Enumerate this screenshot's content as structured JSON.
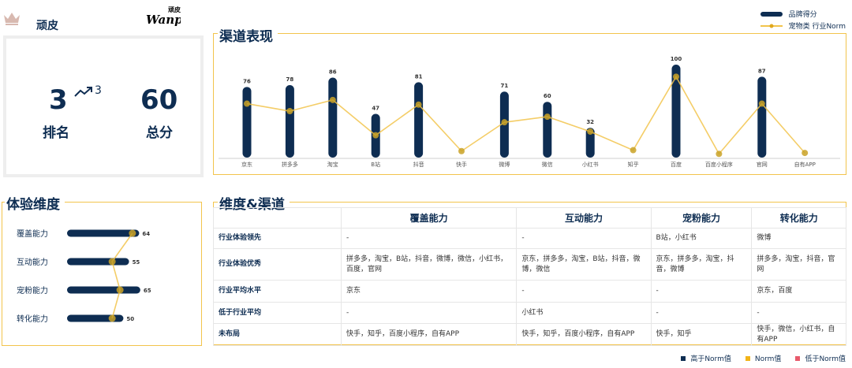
{
  "header": {
    "brand_name": "顽皮",
    "logo_icon": "wanpy-logo",
    "logo_text_top": "顽皮",
    "logo_text": "Wanpy"
  },
  "score": {
    "rank": "3",
    "rank_change": "3",
    "rank_label": "排名",
    "total": "60",
    "total_label": "总分"
  },
  "colors": {
    "navy": "#0e2d52",
    "gold": "#f2c44c",
    "norm_dot": "#c9a227",
    "red": "#e85a6b"
  },
  "channel_panel": {
    "title": "渠道表现",
    "legend": {
      "brand_score": "品牌得分",
      "norm": "宠物类 行业Norm"
    }
  },
  "experience_panel": {
    "title": "体验维度"
  },
  "matrix_panel": {
    "title": "维度&渠道",
    "columns": [
      "覆盖能力",
      "互动能力",
      "宠粉能力",
      "转化能力"
    ],
    "rows": [
      {
        "label": "行业体验领先",
        "cells": [
          "-",
          "-",
          "B站，小红书",
          "微博"
        ]
      },
      {
        "label": "行业体验优秀",
        "cells": [
          "拼多多，淘宝，B站，抖音，微博，微信，小红书，百度，官网",
          "京东，拼多多，淘宝，B站，抖音，微博，微信",
          "京东，拼多多，淘宝，抖音，微博",
          "拼多多，淘宝，抖音，官网"
        ]
      },
      {
        "label": "行业平均水平",
        "cells": [
          "京东",
          "-",
          "-",
          "京东，百度"
        ]
      },
      {
        "label": "低于行业平均",
        "cells": [
          "-",
          "小红书",
          "-",
          "-"
        ]
      },
      {
        "label": "未布局",
        "cells": [
          "快手，知乎，百度小程序，自有APP",
          "快手，知乎，百度小程序，自有APP",
          "快手，知乎",
          "快手，微信，小红书，自有APP"
        ]
      }
    ],
    "legend": [
      "高于Norm值",
      "Norm值",
      "低于Norm值"
    ]
  },
  "chart_data": [
    {
      "type": "bar",
      "title": "渠道表现",
      "categories": [
        "京东",
        "拼多多",
        "淘宝",
        "B站",
        "抖音",
        "快手",
        "微博",
        "微信",
        "小红书",
        "知乎",
        "百度",
        "百度小程序",
        "官网",
        "自有APP"
      ],
      "series": [
        {
          "name": "品牌得分",
          "type": "bar",
          "values": [
            76,
            78,
            86,
            47,
            81,
            0,
            71,
            60,
            32,
            0,
            100,
            0,
            87,
            0
          ],
          "value_labels": [
            "76",
            "78",
            "86",
            "47",
            "81",
            "",
            "71",
            "60",
            "32",
            "",
            "100",
            "",
            "87",
            ""
          ]
        },
        {
          "name": "宠物类 行业Norm",
          "type": "line",
          "values": [
            58,
            50,
            62,
            24,
            57,
            7,
            38,
            44,
            28,
            8,
            87,
            4,
            58,
            5
          ]
        }
      ],
      "ylim": [
        0,
        100
      ],
      "grid": false,
      "legend": "top-right"
    },
    {
      "type": "bar",
      "title": "体验维度",
      "orientation": "horizontal",
      "categories": [
        "覆盖能力",
        "互动能力",
        "宠粉能力",
        "转化能力"
      ],
      "series": [
        {
          "name": "品牌得分",
          "type": "bar",
          "values": [
            64,
            55,
            65,
            50
          ]
        },
        {
          "name": "Norm",
          "type": "line",
          "values": [
            58,
            40,
            47,
            40
          ]
        }
      ],
      "xlim": [
        0,
        70
      ]
    }
  ]
}
